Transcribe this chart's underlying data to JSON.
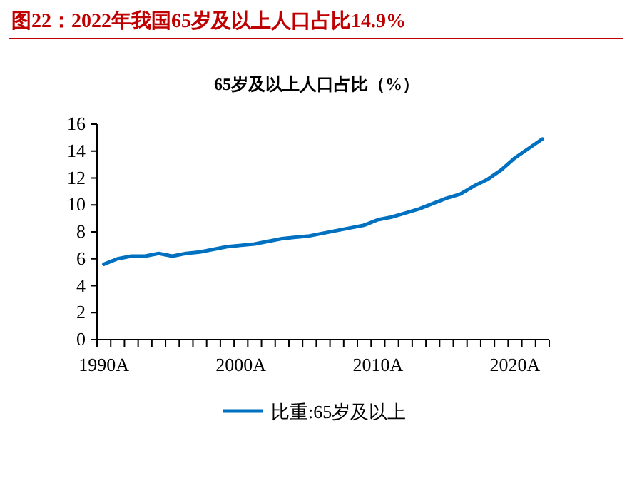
{
  "chart_data": {
    "type": "line",
    "title": "图22：2022年我国65岁及以上人口占比14.9%",
    "subtitle": "65岁及以上人口占比（%）",
    "categories": [
      "1990A",
      null,
      null,
      null,
      null,
      null,
      null,
      null,
      null,
      null,
      "2000A",
      null,
      null,
      null,
      null,
      null,
      null,
      null,
      null,
      null,
      "2010A",
      null,
      null,
      null,
      null,
      null,
      null,
      null,
      null,
      null,
      "2020A",
      null,
      null
    ],
    "series": [
      {
        "name": "比重:65岁及以上",
        "color": "#0070c0",
        "values": [
          5.6,
          6.0,
          6.2,
          6.2,
          6.4,
          6.2,
          6.4,
          6.5,
          6.7,
          6.9,
          7.0,
          7.1,
          7.3,
          7.5,
          7.6,
          7.7,
          7.9,
          8.1,
          8.3,
          8.5,
          8.9,
          9.1,
          9.4,
          9.7,
          10.1,
          10.5,
          10.8,
          11.4,
          11.9,
          12.6,
          13.5,
          14.2,
          14.9
        ]
      }
    ],
    "ylim": [
      0,
      16
    ],
    "yticks": [
      0,
      2,
      4,
      6,
      8,
      10,
      12,
      14,
      16
    ],
    "grid": false,
    "legend": "bottom",
    "marker": "none",
    "line_style": "solid"
  }
}
